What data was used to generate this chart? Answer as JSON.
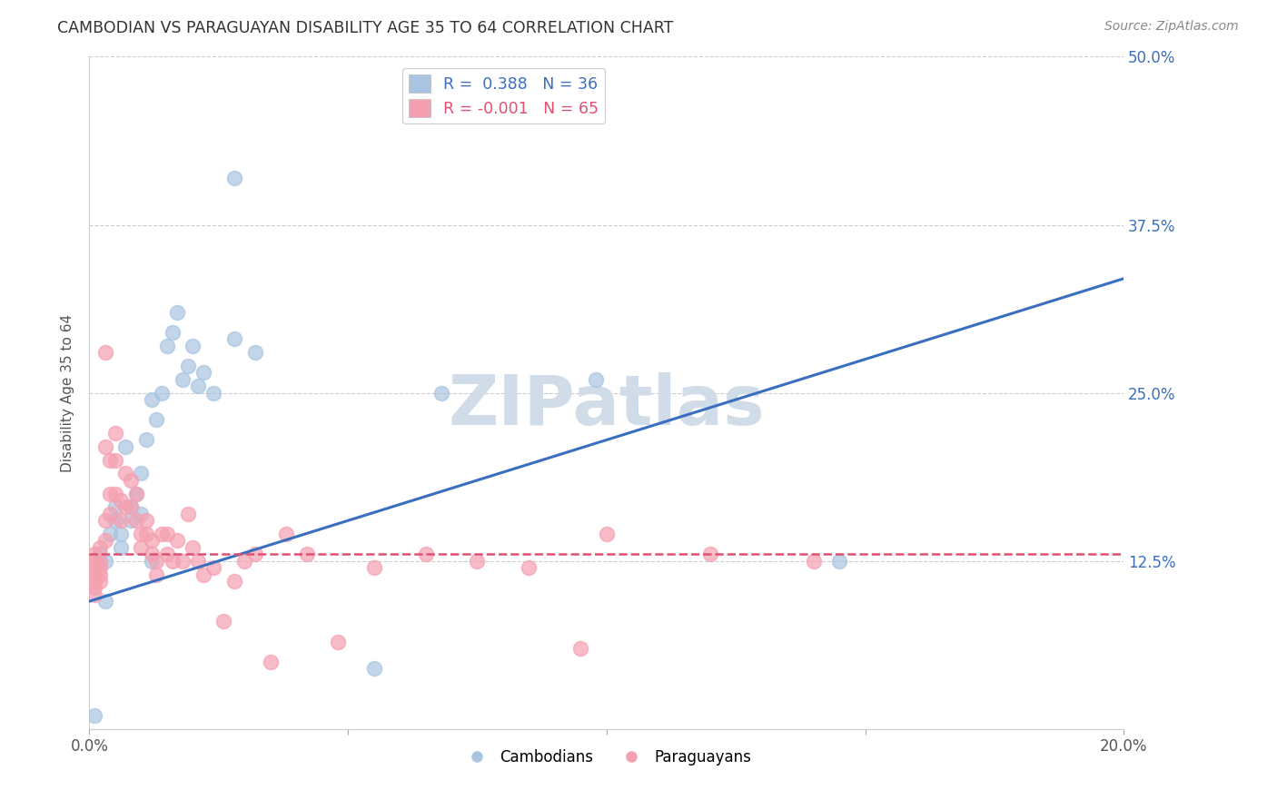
{
  "title": "CAMBODIAN VS PARAGUAYAN DISABILITY AGE 35 TO 64 CORRELATION CHART",
  "source": "Source: ZipAtlas.com",
  "ylabel": "Disability Age 35 to 64",
  "xlim": [
    0.0,
    0.2
  ],
  "ylim": [
    0.0,
    0.5
  ],
  "xticks": [
    0.0,
    0.05,
    0.1,
    0.15,
    0.2
  ],
  "xtick_labels": [
    "0.0%",
    "",
    "",
    "",
    "20.0%"
  ],
  "ytick_positions": [
    0.0,
    0.125,
    0.25,
    0.375,
    0.5
  ],
  "ytick_labels": [
    "",
    "12.5%",
    "25.0%",
    "37.5%",
    "50.0%"
  ],
  "grid_color": "#cccccc",
  "background_color": "#ffffff",
  "cambodian_color": "#a8c4e0",
  "paraguayan_color": "#f4a0b0",
  "blue_line_color": "#3a6fbf",
  "pink_line_color": "#e05070",
  "watermark_color": "#d0dce8",
  "R_cambodian": 0.388,
  "N_cambodian": 36,
  "R_paraguayan": -0.001,
  "N_paraguayan": 65,
  "cam_line_x": [
    0.0,
    0.2
  ],
  "cam_line_y": [
    0.095,
    0.335
  ],
  "par_line_x": [
    0.0,
    0.2
  ],
  "par_line_y": [
    0.13,
    0.13
  ],
  "cambodian_scatter_x": [
    0.001,
    0.002,
    0.003,
    0.004,
    0.005,
    0.005,
    0.006,
    0.006,
    0.007,
    0.008,
    0.008,
    0.009,
    0.01,
    0.01,
    0.011,
    0.012,
    0.013,
    0.014,
    0.015,
    0.016,
    0.017,
    0.018,
    0.019,
    0.02,
    0.021,
    0.022,
    0.024,
    0.028,
    0.028,
    0.032,
    0.055,
    0.068,
    0.098,
    0.145,
    0.003,
    0.012
  ],
  "cambodian_scatter_y": [
    0.01,
    0.13,
    0.095,
    0.145,
    0.155,
    0.165,
    0.135,
    0.145,
    0.21,
    0.155,
    0.165,
    0.175,
    0.16,
    0.19,
    0.215,
    0.245,
    0.23,
    0.25,
    0.285,
    0.295,
    0.31,
    0.26,
    0.27,
    0.285,
    0.255,
    0.265,
    0.25,
    0.41,
    0.29,
    0.28,
    0.045,
    0.25,
    0.26,
    0.125,
    0.125,
    0.125
  ],
  "paraguayan_scatter_x": [
    0.001,
    0.001,
    0.001,
    0.001,
    0.001,
    0.001,
    0.001,
    0.002,
    0.002,
    0.002,
    0.002,
    0.002,
    0.003,
    0.003,
    0.003,
    0.003,
    0.004,
    0.004,
    0.004,
    0.005,
    0.005,
    0.005,
    0.006,
    0.006,
    0.007,
    0.007,
    0.008,
    0.008,
    0.009,
    0.009,
    0.01,
    0.01,
    0.011,
    0.011,
    0.012,
    0.012,
    0.013,
    0.013,
    0.014,
    0.015,
    0.015,
    0.016,
    0.017,
    0.018,
    0.019,
    0.02,
    0.021,
    0.022,
    0.024,
    0.026,
    0.028,
    0.03,
    0.032,
    0.035,
    0.038,
    0.042,
    0.048,
    0.055,
    0.065,
    0.075,
    0.085,
    0.095,
    0.1,
    0.12,
    0.14
  ],
  "paraguayan_scatter_y": [
    0.13,
    0.125,
    0.12,
    0.115,
    0.11,
    0.105,
    0.1,
    0.135,
    0.125,
    0.12,
    0.115,
    0.11,
    0.28,
    0.21,
    0.155,
    0.14,
    0.2,
    0.175,
    0.16,
    0.22,
    0.2,
    0.175,
    0.17,
    0.155,
    0.19,
    0.165,
    0.185,
    0.165,
    0.175,
    0.155,
    0.145,
    0.135,
    0.155,
    0.145,
    0.14,
    0.13,
    0.125,
    0.115,
    0.145,
    0.145,
    0.13,
    0.125,
    0.14,
    0.125,
    0.16,
    0.135,
    0.125,
    0.115,
    0.12,
    0.08,
    0.11,
    0.125,
    0.13,
    0.05,
    0.145,
    0.13,
    0.065,
    0.12,
    0.13,
    0.125,
    0.12,
    0.06,
    0.145,
    0.13,
    0.125
  ]
}
